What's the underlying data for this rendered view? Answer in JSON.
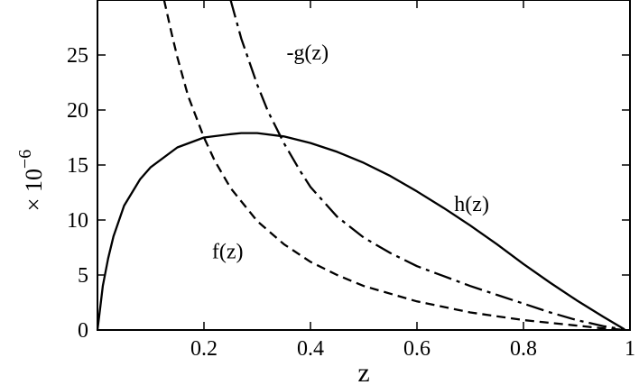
{
  "chart_data": {
    "type": "line",
    "title": "",
    "xlabel": "z",
    "ylabel": "× 10",
    "ylabel_exponent": "−6",
    "xlim": [
      0,
      1
    ],
    "ylim": [
      0,
      30
    ],
    "x_ticks": [
      0.2,
      0.4,
      0.6,
      0.8,
      1
    ],
    "x_tick_labels": [
      "0.2",
      "0.4",
      "0.6",
      "0.8",
      "1"
    ],
    "y_ticks": [
      0,
      5,
      10,
      15,
      20,
      25
    ],
    "y_tick_labels": [
      "0",
      "5",
      "10",
      "15",
      "20",
      "25"
    ],
    "grid": false,
    "legend": "none",
    "series": [
      {
        "name": "h(z)",
        "style": "solid",
        "x": [
          0.0,
          0.005,
          0.01,
          0.02,
          0.03,
          0.05,
          0.08,
          0.1,
          0.15,
          0.2,
          0.25,
          0.27,
          0.3,
          0.35,
          0.4,
          0.45,
          0.5,
          0.55,
          0.6,
          0.65,
          0.7,
          0.75,
          0.8,
          0.85,
          0.9,
          0.95,
          0.99
        ],
        "y": [
          0.0,
          2.0,
          4.0,
          6.5,
          8.5,
          11.3,
          13.7,
          14.8,
          16.6,
          17.5,
          17.8,
          17.9,
          17.9,
          17.6,
          17.0,
          16.2,
          15.2,
          14.0,
          12.6,
          11.1,
          9.5,
          7.8,
          6.0,
          4.3,
          2.7,
          1.2,
          0.05
        ]
      },
      {
        "name": "f(z)",
        "style": "dashed",
        "x": [
          0.125,
          0.14,
          0.15,
          0.17,
          0.2,
          0.22,
          0.25,
          0.3,
          0.35,
          0.4,
          0.45,
          0.5,
          0.6,
          0.7,
          0.8,
          0.9,
          0.95,
          0.99
        ],
        "y": [
          30.0,
          26.8,
          24.8,
          21.3,
          17.5,
          15.4,
          12.9,
          9.9,
          7.8,
          6.2,
          5.0,
          4.0,
          2.6,
          1.6,
          0.9,
          0.4,
          0.15,
          0.02
        ]
      },
      {
        "name": "-g(z)",
        "style": "dash-dot",
        "x": [
          0.25,
          0.27,
          0.3,
          0.32,
          0.35,
          0.38,
          0.4,
          0.45,
          0.5,
          0.55,
          0.6,
          0.65,
          0.7,
          0.75,
          0.8,
          0.85,
          0.9,
          0.95,
          0.99
        ],
        "y": [
          30.0,
          26.5,
          22.3,
          19.9,
          17.0,
          14.5,
          13.0,
          10.3,
          8.4,
          7.0,
          5.8,
          4.9,
          4.0,
          3.2,
          2.4,
          1.6,
          0.9,
          0.35,
          0.03
        ]
      }
    ],
    "annotations": [
      {
        "text": "h(z)",
        "x": 0.67,
        "y": 10.8
      },
      {
        "text": "f(z)",
        "x": 0.215,
        "y": 6.5
      },
      {
        "text": "-g(z)",
        "x": 0.355,
        "y": 24.6
      }
    ]
  }
}
